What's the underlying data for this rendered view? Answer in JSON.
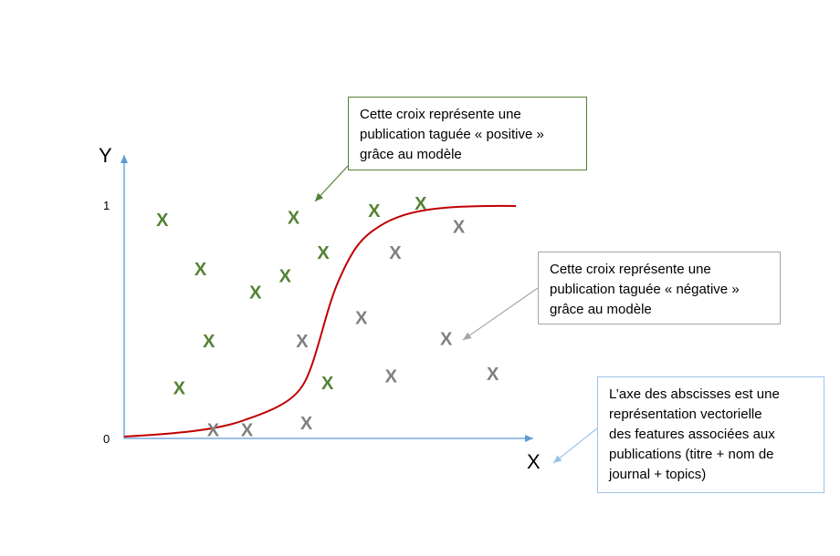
{
  "axes": {
    "y_label": "Y",
    "x_label": "X",
    "y_tick_top": "1",
    "y_tick_bottom": "0"
  },
  "colors": {
    "positive": "#548235",
    "negative": "#808080",
    "curve": "#c00000",
    "axis": "#5b9bd5",
    "callout_positive_border": "#548235",
    "callout_negative_border": "#a6a6a6",
    "callout_axis_border": "#9dc3e6"
  },
  "chart_data": {
    "type": "scatter",
    "marker": "X",
    "ylim": [
      0,
      1
    ],
    "positive_points": [
      {
        "x": 0.09,
        "y": 0.91
      },
      {
        "x": 0.18,
        "y": 0.7
      },
      {
        "x": 0.31,
        "y": 0.6
      },
      {
        "x": 0.4,
        "y": 0.92
      },
      {
        "x": 0.38,
        "y": 0.67
      },
      {
        "x": 0.47,
        "y": 0.77
      },
      {
        "x": 0.59,
        "y": 0.95
      },
      {
        "x": 0.7,
        "y": 0.98
      },
      {
        "x": 0.2,
        "y": 0.39
      },
      {
        "x": 0.13,
        "y": 0.19
      },
      {
        "x": 0.48,
        "y": 0.21
      }
    ],
    "negative_points": [
      {
        "x": 0.79,
        "y": 0.88
      },
      {
        "x": 0.64,
        "y": 0.77
      },
      {
        "x": 0.56,
        "y": 0.49
      },
      {
        "x": 0.42,
        "y": 0.39
      },
      {
        "x": 0.76,
        "y": 0.4
      },
      {
        "x": 0.63,
        "y": 0.24
      },
      {
        "x": 0.87,
        "y": 0.25
      },
      {
        "x": 0.43,
        "y": 0.04
      },
      {
        "x": 0.21,
        "y": 0.01
      },
      {
        "x": 0.29,
        "y": 0.01
      }
    ]
  },
  "callouts": {
    "positive": "Cette croix représente une\npublication taguée « positive »\ngrâce au modèle",
    "negative": "Cette croix représente une\npublication taguée « négative »\ngrâce au modèle",
    "axis": "L’axe des abscisses est une\nreprésentation vectorielle\ndes features associées aux\npublications (titre + nom de\njournal + topics)"
  }
}
